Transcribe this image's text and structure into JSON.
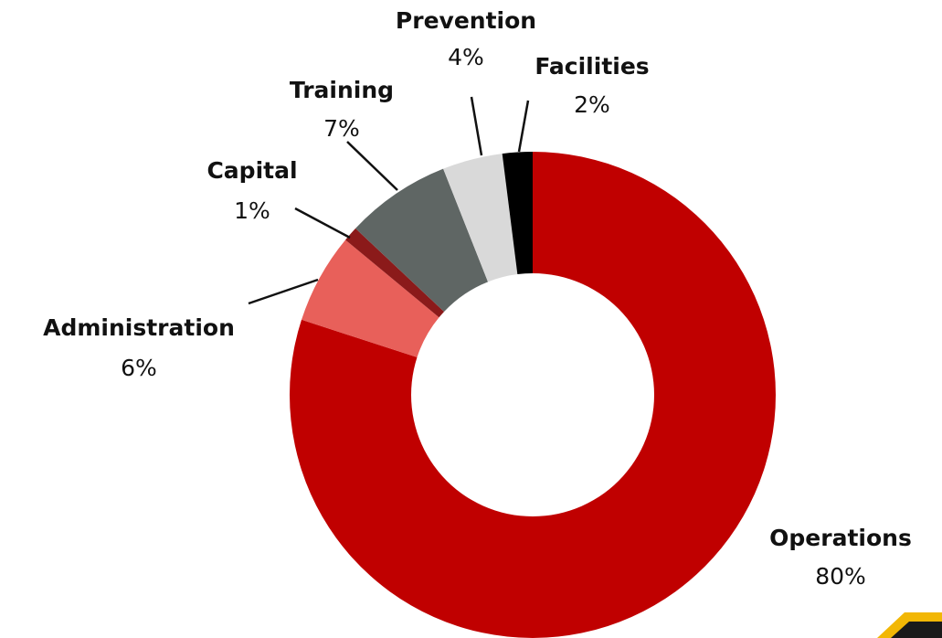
{
  "chart_data": {
    "type": "pie",
    "donut": true,
    "categories": [
      "Operations",
      "Administration",
      "Capital",
      "Training",
      "Prevention",
      "Facilities"
    ],
    "values": [
      80,
      6,
      1,
      7,
      4,
      2
    ],
    "value_labels": [
      "80%",
      "6%",
      "1%",
      "7%",
      "4%",
      "2%"
    ],
    "colors": [
      "#c00000",
      "#e8605a",
      "#8b1a1a",
      "#5f6664",
      "#d9d9d9",
      "#000000"
    ]
  }
}
